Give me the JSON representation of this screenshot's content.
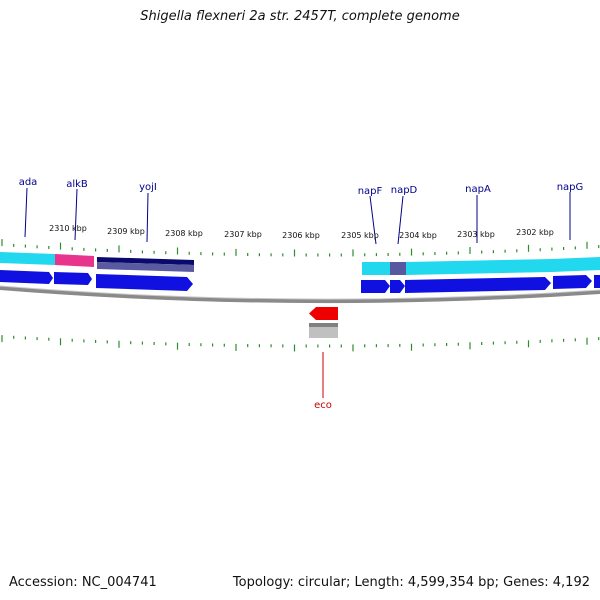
{
  "title": "Shigella flexneri 2a str. 2457T, complete genome",
  "footer": {
    "accession": "Accession: NC_004741",
    "summary": "Topology: circular; Length: 4,599,354 bp; Genes: 4,192"
  },
  "colors": {
    "label_gene": "#00008b",
    "label_feature": "#cc0000",
    "tick": "#2e8b2e",
    "backbone": "#808080",
    "cds_blue": "#1010e0",
    "cyan": "#22d8ee",
    "pink": "#e8348c",
    "navy": "#0a0a6e",
    "slate": "#5858a0",
    "red": "#ee0000",
    "grey_bar": "#b8b8b8"
  },
  "scale_labels": [
    "2310 kbp",
    "2309 kbp",
    "2308 kbp",
    "2307 kbp",
    "2306 kbp",
    "2305 kbp",
    "2304 kbp",
    "2303 kbp",
    "2302 kbp"
  ],
  "gene_labels": [
    "ada",
    "alkB",
    "yojI",
    "napF",
    "napD",
    "napA",
    "napG"
  ],
  "feature_labels": [
    "eco"
  ]
}
